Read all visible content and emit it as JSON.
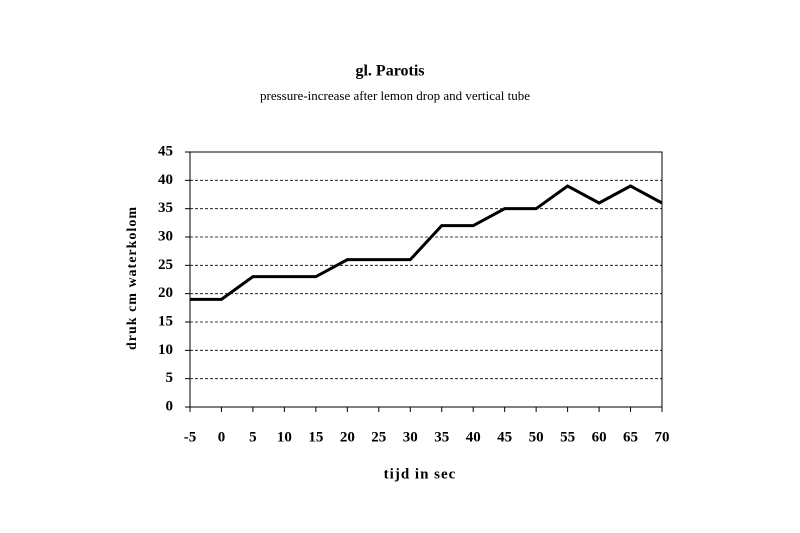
{
  "chart_data": {
    "type": "line",
    "title": "gl. Parotis",
    "subtitle": "pressure-increase after lemon drop and vertical tube",
    "x_label": "tijd in sec",
    "y_label": "druk cm waterkolom",
    "x": [
      -5,
      0,
      5,
      10,
      15,
      20,
      25,
      30,
      35,
      40,
      45,
      50,
      55,
      60,
      65,
      70
    ],
    "series": [
      {
        "name": "druk",
        "color": "#000000",
        "values": [
          19,
          19,
          23,
          23,
          23,
          26,
          26,
          26,
          32,
          32,
          35,
          35,
          39,
          36,
          39,
          36
        ]
      }
    ],
    "xlim": [
      -5,
      70
    ],
    "xticks": [
      -5,
      0,
      5,
      10,
      15,
      20,
      25,
      30,
      35,
      40,
      45,
      50,
      55,
      60,
      65,
      70
    ],
    "ylim": [
      0,
      45
    ],
    "yticks": [
      0,
      5,
      10,
      15,
      20,
      25,
      30,
      35,
      40,
      45
    ],
    "grid": true
  }
}
